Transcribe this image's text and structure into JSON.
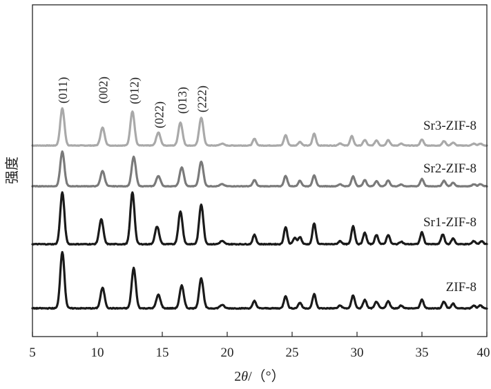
{
  "chart_data": {
    "type": "line",
    "title": "",
    "xlabel_prefix": "2",
    "xlabel_theta": "θ",
    "xlabel_suffix": "/（°）",
    "ylabel": "强度",
    "xlim": [
      5,
      40
    ],
    "xticks": [
      5,
      10,
      15,
      20,
      25,
      30,
      35,
      40
    ],
    "grid": false,
    "legend": "none",
    "series": [
      {
        "name": "Sr3-ZIF-8",
        "color": "#a9a9a9",
        "peaks": [
          [
            7.3,
            1.0
          ],
          [
            10.4,
            0.48
          ],
          [
            12.7,
            0.92
          ],
          [
            14.7,
            0.35
          ],
          [
            16.4,
            0.62
          ],
          [
            18.0,
            0.75
          ],
          [
            19.6,
            0.05
          ],
          [
            22.1,
            0.18
          ],
          [
            24.5,
            0.28
          ],
          [
            25.6,
            0.1
          ],
          [
            26.7,
            0.32
          ],
          [
            28.7,
            0.06
          ],
          [
            29.6,
            0.25
          ],
          [
            30.6,
            0.15
          ],
          [
            31.5,
            0.14
          ],
          [
            32.4,
            0.15
          ],
          [
            33.4,
            0.05
          ],
          [
            35.0,
            0.16
          ],
          [
            36.7,
            0.12
          ],
          [
            37.4,
            0.08
          ],
          [
            39.0,
            0.05
          ],
          [
            39.5,
            0.05
          ]
        ]
      },
      {
        "name": "Sr2-ZIF-8",
        "color": "#7a7a7a",
        "peaks": [
          [
            7.3,
            1.0
          ],
          [
            10.4,
            0.44
          ],
          [
            12.8,
            0.85
          ],
          [
            14.7,
            0.3
          ],
          [
            16.5,
            0.55
          ],
          [
            18.0,
            0.72
          ],
          [
            19.6,
            0.06
          ],
          [
            22.1,
            0.18
          ],
          [
            24.5,
            0.3
          ],
          [
            25.6,
            0.16
          ],
          [
            26.7,
            0.32
          ],
          [
            28.7,
            0.06
          ],
          [
            29.7,
            0.29
          ],
          [
            30.6,
            0.18
          ],
          [
            31.5,
            0.15
          ],
          [
            32.4,
            0.17
          ],
          [
            33.4,
            0.05
          ],
          [
            35.0,
            0.21
          ],
          [
            36.7,
            0.16
          ],
          [
            37.4,
            0.1
          ],
          [
            39.0,
            0.06
          ],
          [
            39.5,
            0.06
          ]
        ]
      },
      {
        "name": "Sr1-ZIF-8",
        "color": "#1a1a1a",
        "peaks": [
          [
            7.3,
            1.0
          ],
          [
            10.3,
            0.48
          ],
          [
            12.7,
            1.0
          ],
          [
            14.6,
            0.34
          ],
          [
            16.4,
            0.63
          ],
          [
            18.0,
            0.77
          ],
          [
            19.6,
            0.06
          ],
          [
            22.1,
            0.18
          ],
          [
            24.5,
            0.33
          ],
          [
            25.2,
            0.12
          ],
          [
            25.6,
            0.14
          ],
          [
            26.7,
            0.4
          ],
          [
            28.7,
            0.06
          ],
          [
            29.7,
            0.35
          ],
          [
            30.6,
            0.22
          ],
          [
            31.5,
            0.18
          ],
          [
            32.4,
            0.18
          ],
          [
            33.4,
            0.05
          ],
          [
            35.0,
            0.23
          ],
          [
            36.6,
            0.19
          ],
          [
            37.4,
            0.11
          ],
          [
            39.0,
            0.06
          ],
          [
            39.6,
            0.06
          ]
        ]
      },
      {
        "name": "ZIF-8",
        "color": "#1a1a1a",
        "peaks": [
          [
            7.3,
            1.0
          ],
          [
            10.4,
            0.36
          ],
          [
            12.8,
            0.71
          ],
          [
            14.7,
            0.24
          ],
          [
            16.5,
            0.4
          ],
          [
            18.0,
            0.53
          ],
          [
            19.6,
            0.06
          ],
          [
            22.1,
            0.13
          ],
          [
            24.5,
            0.22
          ],
          [
            25.6,
            0.1
          ],
          [
            26.7,
            0.25
          ],
          [
            28.7,
            0.05
          ],
          [
            29.7,
            0.23
          ],
          [
            30.6,
            0.15
          ],
          [
            31.5,
            0.12
          ],
          [
            32.4,
            0.13
          ],
          [
            33.4,
            0.05
          ],
          [
            35.0,
            0.15
          ],
          [
            36.7,
            0.12
          ],
          [
            37.4,
            0.08
          ],
          [
            39.0,
            0.05
          ],
          [
            39.5,
            0.05
          ]
        ]
      }
    ],
    "annotations": [
      {
        "text": "(011)",
        "x": 7.3
      },
      {
        "text": "(002)",
        "x": 10.4
      },
      {
        "text": "(012)",
        "x": 12.8
      },
      {
        "text": "(022)",
        "x": 14.7
      },
      {
        "text": "(013)",
        "x": 16.5
      },
      {
        "text": "(222)",
        "x": 18.0
      }
    ]
  }
}
